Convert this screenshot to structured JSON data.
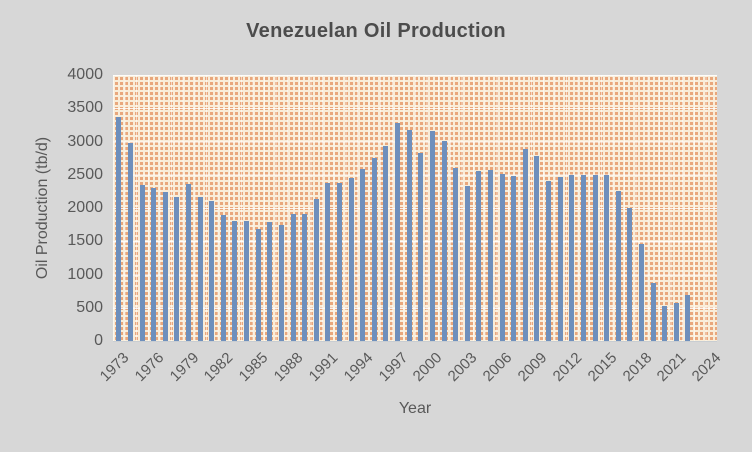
{
  "chart_data": {
    "type": "bar",
    "title": "Venezuelan Oil Production",
    "xlabel": "Year",
    "ylabel": "Oil Production (tb/d)",
    "ylim": [
      0,
      4000
    ],
    "ytick_step": 500,
    "yticks": [
      0,
      500,
      1000,
      1500,
      2000,
      2500,
      3000,
      3500,
      4000
    ],
    "x_axis_range": [
      1973,
      2024
    ],
    "xticks": [
      1973,
      1976,
      1979,
      1982,
      1985,
      1988,
      1991,
      1994,
      1997,
      2000,
      2003,
      2006,
      2009,
      2012,
      2015,
      2018,
      2021,
      2024
    ],
    "grid": true,
    "legend": null,
    "categories": [
      1973,
      1974,
      1975,
      1976,
      1977,
      1978,
      1979,
      1980,
      1981,
      1982,
      1983,
      1984,
      1985,
      1986,
      1987,
      1988,
      1989,
      1990,
      1991,
      1992,
      1993,
      1994,
      1995,
      1996,
      1997,
      1998,
      1999,
      2000,
      2001,
      2002,
      2003,
      2004,
      2005,
      2006,
      2007,
      2008,
      2009,
      2010,
      2011,
      2012,
      2013,
      2014,
      2015,
      2016,
      2017,
      2018,
      2019,
      2020,
      2021,
      2022
    ],
    "values": [
      3366,
      2976,
      2346,
      2294,
      2238,
      2166,
      2356,
      2168,
      2102,
      1895,
      1801,
      1798,
      1677,
      1787,
      1752,
      1903,
      1907,
      2137,
      2375,
      2371,
      2450,
      2588,
      2750,
      2938,
      3280,
      3167,
      2826,
      3155,
      3010,
      2604,
      2335,
      2557,
      2565,
      2511,
      2487,
      2890,
      2780,
      2400,
      2470,
      2490,
      2500,
      2500,
      2490,
      2250,
      2000,
      1465,
      870,
      520,
      570,
      690
    ]
  },
  "colors": {
    "bar": "#6E8FBC",
    "pattern_foreground": "#E9A77C",
    "pattern_background": "#F9EDD9",
    "chart_background": "#D7D7D7",
    "text": "#595959",
    "title_text": "#4C4C4C",
    "gridline": "#FFFFFF"
  }
}
